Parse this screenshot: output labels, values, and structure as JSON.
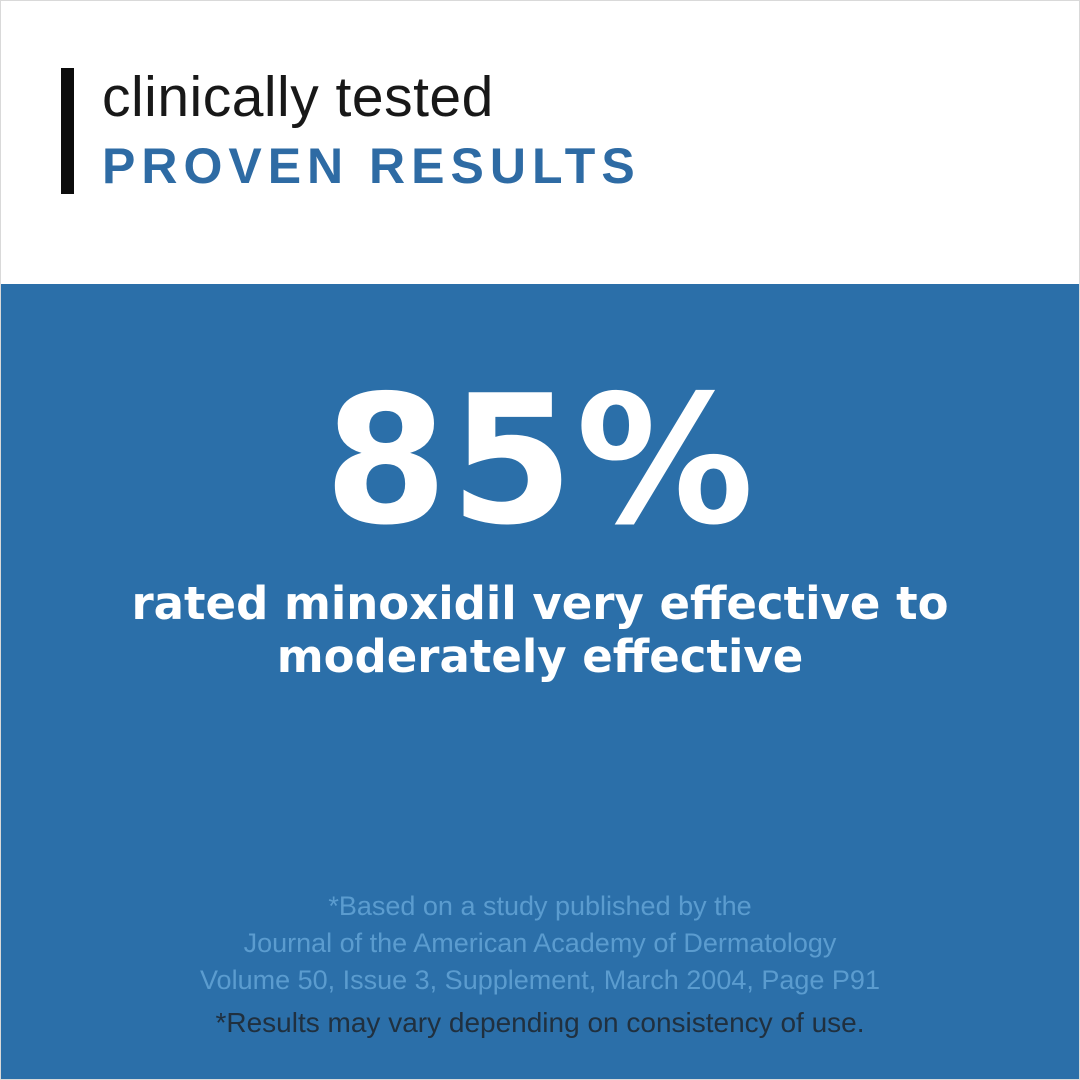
{
  "header": {
    "subtitle": "clinically tested",
    "title": "PROVEN RESULTS"
  },
  "hero": {
    "stat_value": "85%",
    "description_line1": "rated minoxidil very effective to",
    "description_line2": "moderately effective",
    "citation_line1": "*Based on a study published by the",
    "citation_line2": "Journal of the American Academy of Dermatology",
    "citation_line3": "Volume 50, Issue 3, Supplement, March 2004, Page P91",
    "disclaimer": "*Results may vary depending on consistency of use."
  },
  "colors": {
    "background_blue": "#2b6fa9",
    "accent_blue": "#2e6ba4",
    "citation_blue": "#5b9ccf",
    "disclaimer_dark": "#20303f",
    "bar_black": "#0c0c0c"
  }
}
